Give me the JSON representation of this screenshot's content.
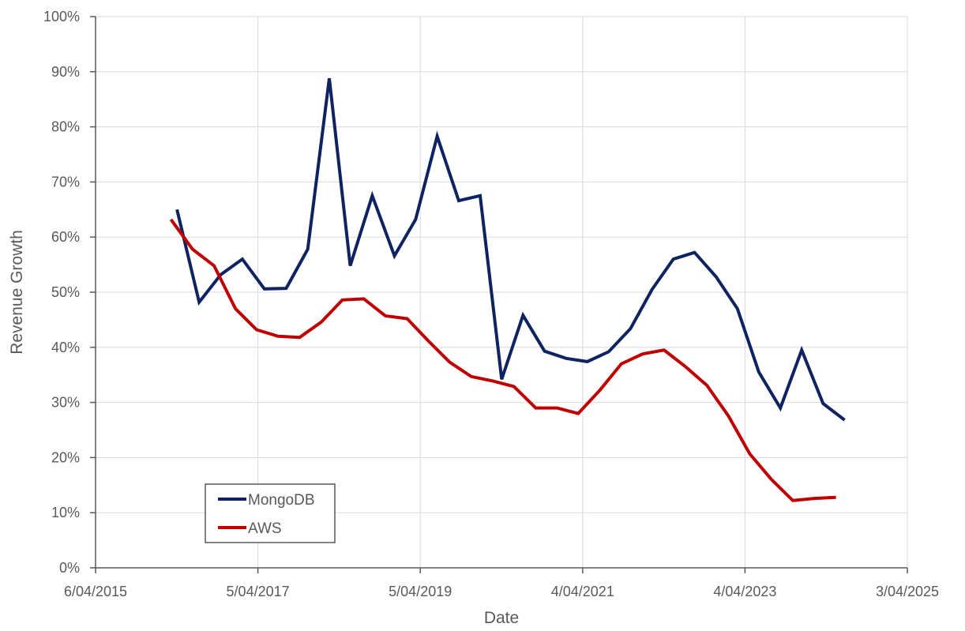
{
  "chart_data": {
    "type": "line",
    "xlabel": "Date",
    "ylabel": "Revenue Growth",
    "x_tick_labels": [
      "6/04/2015",
      "5/04/2017",
      "5/04/2019",
      "4/04/2021",
      "4/04/2023",
      "3/04/2025"
    ],
    "y_tick_labels": [
      "0%",
      "10%",
      "20%",
      "30%",
      "40%",
      "50%",
      "60%",
      "70%",
      "80%",
      "90%",
      "100%"
    ],
    "xlim": [
      "2015-04-06",
      "2025-04-03"
    ],
    "ylim": [
      0,
      1
    ],
    "grid": true,
    "legend_position": "bottom-left",
    "series": [
      {
        "name": "MongoDB",
        "color": "#0e2360",
        "points": [
          [
            "2016-04-06",
            0.65
          ],
          [
            "2016-07-15",
            0.482
          ],
          [
            "2016-10-20",
            0.532
          ],
          [
            "2017-01-25",
            0.56
          ],
          [
            "2017-05-04",
            0.506
          ],
          [
            "2017-08-10",
            0.507
          ],
          [
            "2017-11-15",
            0.578
          ],
          [
            "2018-02-20",
            0.888
          ],
          [
            "2018-05-25",
            0.548
          ],
          [
            "2018-09-01",
            0.675
          ],
          [
            "2018-12-10",
            0.566
          ],
          [
            "2019-03-15",
            0.632
          ],
          [
            "2019-06-20",
            0.783
          ],
          [
            "2019-09-25",
            0.666
          ],
          [
            "2019-12-30",
            0.675
          ],
          [
            "2020-04-05",
            0.342
          ],
          [
            "2020-07-10",
            0.458
          ],
          [
            "2020-10-15",
            0.393
          ],
          [
            "2021-01-20",
            0.38
          ],
          [
            "2021-04-25",
            0.374
          ],
          [
            "2021-07-30",
            0.392
          ],
          [
            "2021-11-05",
            0.434
          ],
          [
            "2022-02-10",
            0.505
          ],
          [
            "2022-05-17",
            0.56
          ],
          [
            "2022-08-20",
            0.572
          ],
          [
            "2022-11-25",
            0.528
          ],
          [
            "2023-03-01",
            0.47
          ],
          [
            "2023-06-05",
            0.355
          ],
          [
            "2023-09-10",
            0.29
          ],
          [
            "2023-12-15",
            0.395
          ],
          [
            "2024-03-20",
            0.298
          ],
          [
            "2024-06-25",
            0.268
          ]
        ]
      },
      {
        "name": "AWS",
        "color": "#c00000",
        "points": [
          [
            "2016-03-10",
            0.632
          ],
          [
            "2016-06-15",
            0.578
          ],
          [
            "2016-09-20",
            0.548
          ],
          [
            "2016-12-25",
            0.47
          ],
          [
            "2017-03-30",
            0.432
          ],
          [
            "2017-07-05",
            0.42
          ],
          [
            "2017-10-10",
            0.418
          ],
          [
            "2018-01-15",
            0.446
          ],
          [
            "2018-04-20",
            0.486
          ],
          [
            "2018-07-25",
            0.488
          ],
          [
            "2018-10-30",
            0.457
          ],
          [
            "2019-02-05",
            0.452
          ],
          [
            "2019-05-10",
            0.412
          ],
          [
            "2019-08-15",
            0.373
          ],
          [
            "2019-11-20",
            0.347
          ],
          [
            "2020-02-25",
            0.339
          ],
          [
            "2020-05-30",
            0.329
          ],
          [
            "2020-09-05",
            0.29
          ],
          [
            "2020-12-10",
            0.29
          ],
          [
            "2021-03-15",
            0.28
          ],
          [
            "2021-06-20",
            0.322
          ],
          [
            "2021-09-25",
            0.37
          ],
          [
            "2021-12-30",
            0.388
          ],
          [
            "2022-04-05",
            0.395
          ],
          [
            "2022-07-10",
            0.365
          ],
          [
            "2022-10-15",
            0.331
          ],
          [
            "2023-01-20",
            0.275
          ],
          [
            "2023-04-25",
            0.207
          ],
          [
            "2023-07-30",
            0.161
          ],
          [
            "2023-11-05",
            0.122
          ],
          [
            "2024-02-10",
            0.126
          ],
          [
            "2024-05-17",
            0.128
          ]
        ]
      }
    ]
  }
}
